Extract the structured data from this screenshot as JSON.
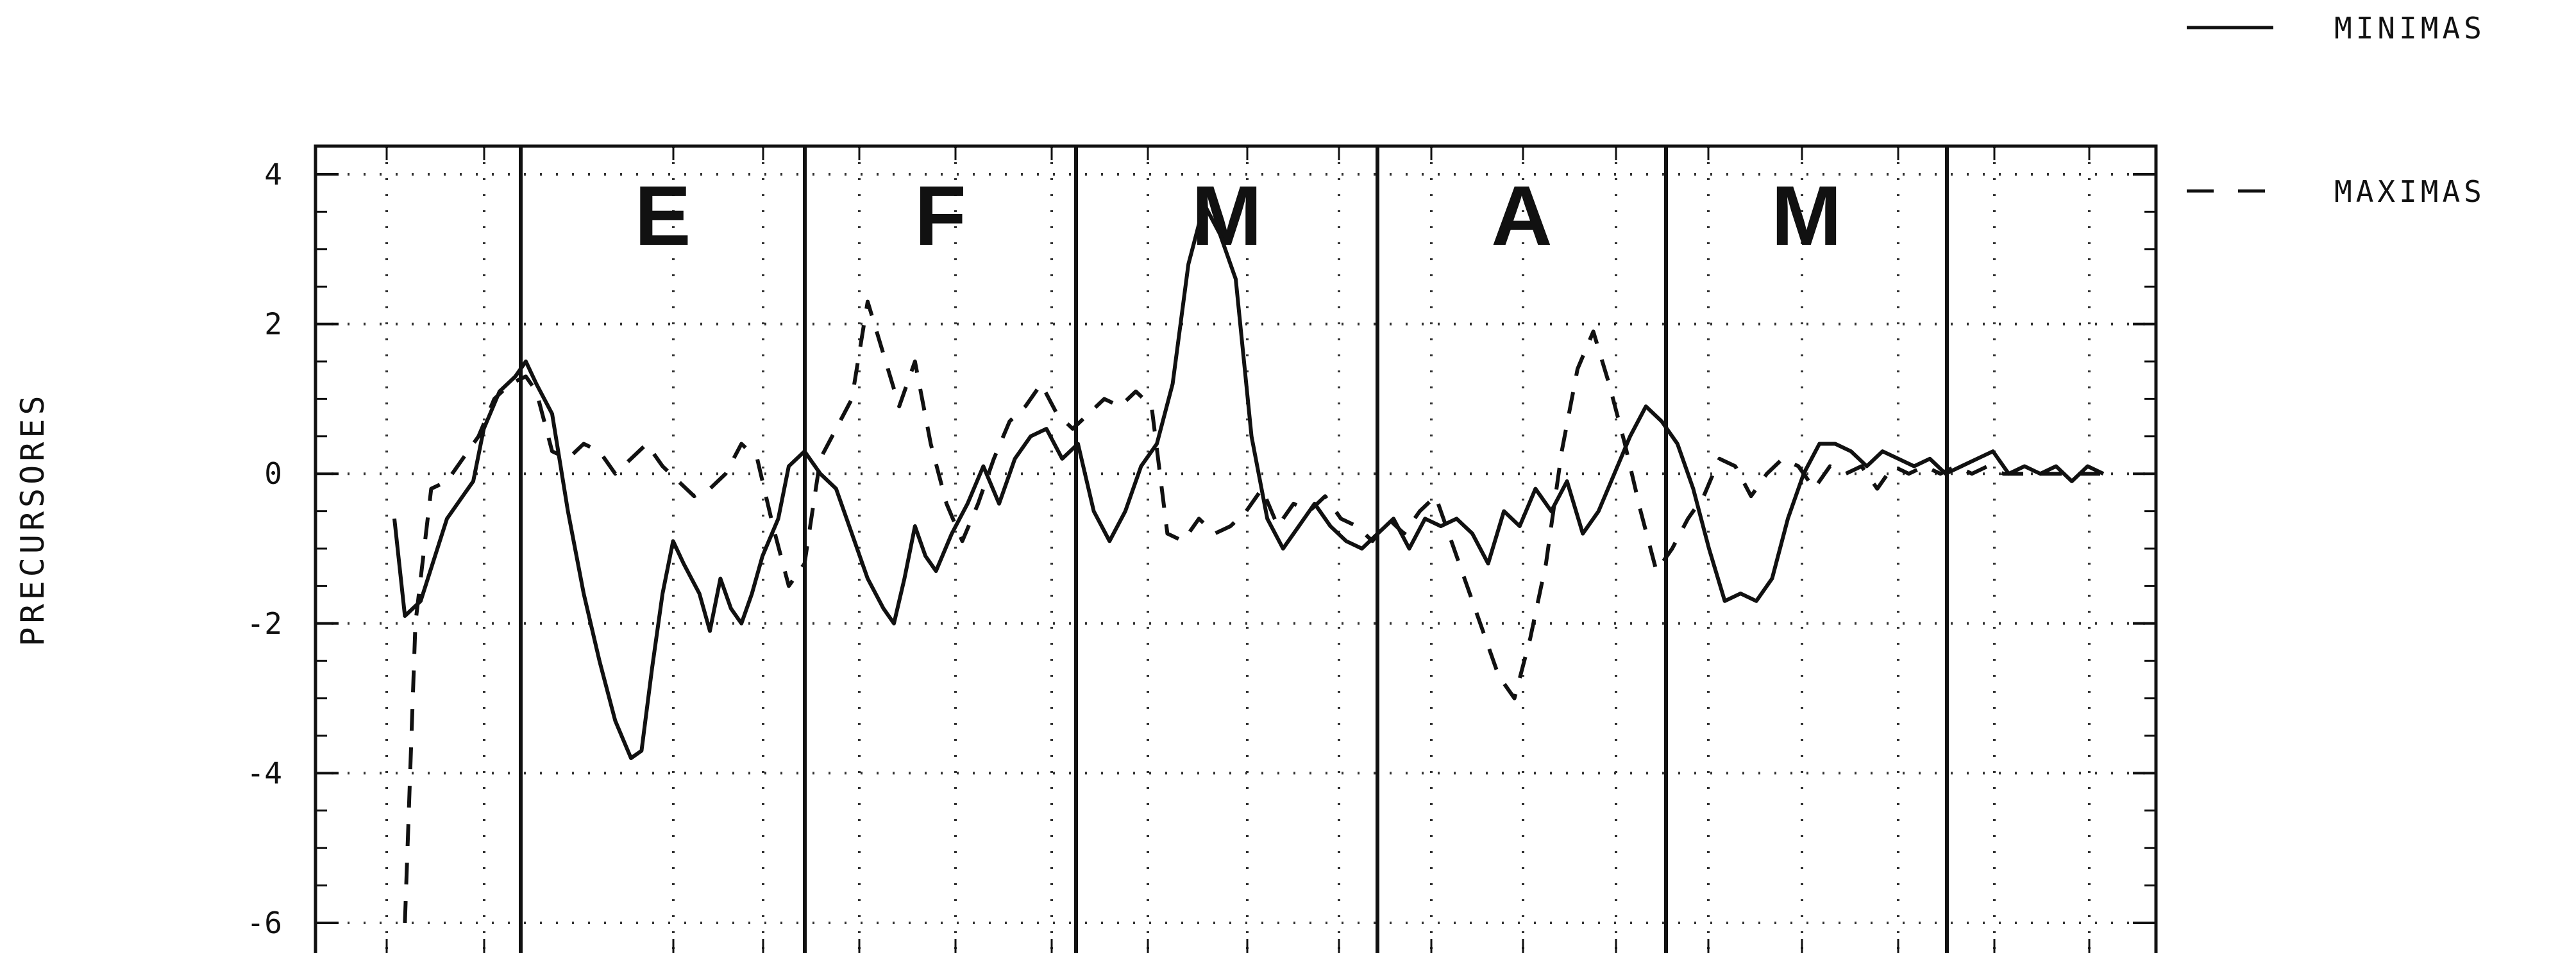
{
  "chart_data": {
    "type": "line",
    "title": "",
    "xlabel": "",
    "ylabel": "PRECURSORES",
    "ylim": [
      -6,
      4.4
    ],
    "yticks": [
      4,
      2,
      0,
      -2,
      -4,
      -6
    ],
    "ytick_labels": [
      "4",
      "2",
      "0",
      "-2",
      "-4",
      "-6"
    ],
    "grid": true,
    "legend_position": "top-right",
    "month_labels": [
      "E",
      "F",
      "M",
      "A",
      "M"
    ],
    "series": [
      {
        "name": "MINIMAS",
        "style": "solid",
        "points": [
          [
            -0.5,
            -0.6
          ],
          [
            -0.3,
            -1.9
          ],
          [
            0,
            -1.7
          ],
          [
            0.5,
            -0.6
          ],
          [
            0.8,
            -0.3
          ],
          [
            1.0,
            -0.1
          ],
          [
            1.2,
            0.6
          ],
          [
            1.5,
            1.1
          ],
          [
            1.8,
            1.3
          ],
          [
            2.0,
            1.5
          ],
          [
            2.2,
            1.2
          ],
          [
            2.5,
            0.8
          ],
          [
            2.8,
            -0.5
          ],
          [
            3.1,
            -1.6
          ],
          [
            3.4,
            -2.5
          ],
          [
            3.7,
            -3.3
          ],
          [
            4.0,
            -3.8
          ],
          [
            4.2,
            -3.7
          ],
          [
            4.4,
            -2.6
          ],
          [
            4.6,
            -1.6
          ],
          [
            4.8,
            -0.9
          ],
          [
            5.0,
            -1.2
          ],
          [
            5.3,
            -1.6
          ],
          [
            5.5,
            -2.1
          ],
          [
            5.7,
            -1.4
          ],
          [
            5.9,
            -1.8
          ],
          [
            6.1,
            -2.0
          ],
          [
            6.3,
            -1.6
          ],
          [
            6.5,
            -1.1
          ],
          [
            6.8,
            -0.6
          ],
          [
            7.0,
            0.1
          ],
          [
            7.3,
            0.3
          ],
          [
            7.6,
            0.0
          ],
          [
            7.9,
            -0.2
          ],
          [
            8.2,
            -0.8
          ],
          [
            8.5,
            -1.4
          ],
          [
            8.8,
            -1.8
          ],
          [
            9.0,
            -2.0
          ],
          [
            9.2,
            -1.4
          ],
          [
            9.4,
            -0.7
          ],
          [
            9.6,
            -1.1
          ],
          [
            9.8,
            -1.3
          ],
          [
            10.1,
            -0.8
          ],
          [
            10.4,
            -0.4
          ],
          [
            10.7,
            0.1
          ],
          [
            11.0,
            -0.4
          ],
          [
            11.3,
            0.2
          ],
          [
            11.6,
            0.5
          ],
          [
            11.9,
            0.6
          ],
          [
            12.2,
            0.2
          ],
          [
            12.5,
            0.4
          ],
          [
            12.8,
            -0.5
          ],
          [
            13.1,
            -0.9
          ],
          [
            13.4,
            -0.5
          ],
          [
            13.7,
            0.1
          ],
          [
            14.0,
            0.4
          ],
          [
            14.3,
            1.2
          ],
          [
            14.6,
            2.8
          ],
          [
            14.9,
            3.6
          ],
          [
            15.2,
            3.2
          ],
          [
            15.5,
            2.6
          ],
          [
            15.8,
            0.5
          ],
          [
            16.1,
            -0.6
          ],
          [
            16.4,
            -1.0
          ],
          [
            16.7,
            -0.7
          ],
          [
            17.0,
            -0.4
          ],
          [
            17.3,
            -0.7
          ],
          [
            17.6,
            -0.9
          ],
          [
            17.9,
            -1.0
          ],
          [
            18.2,
            -0.8
          ],
          [
            18.5,
            -0.6
          ],
          [
            18.8,
            -1.0
          ],
          [
            19.1,
            -0.6
          ],
          [
            19.4,
            -0.7
          ],
          [
            19.7,
            -0.6
          ],
          [
            20.0,
            -0.8
          ],
          [
            20.3,
            -1.2
          ],
          [
            20.6,
            -0.5
          ],
          [
            20.9,
            -0.7
          ],
          [
            21.2,
            -0.2
          ],
          [
            21.5,
            -0.5
          ],
          [
            21.8,
            -0.1
          ],
          [
            22.1,
            -0.8
          ],
          [
            22.4,
            -0.5
          ],
          [
            22.7,
            0.0
          ],
          [
            23.0,
            0.5
          ],
          [
            23.3,
            0.9
          ],
          [
            23.6,
            0.7
          ],
          [
            23.9,
            0.4
          ],
          [
            24.2,
            -0.2
          ],
          [
            24.5,
            -1.0
          ],
          [
            24.8,
            -1.7
          ],
          [
            25.1,
            -1.6
          ],
          [
            25.4,
            -1.7
          ],
          [
            25.7,
            -1.4
          ],
          [
            26.0,
            -0.6
          ],
          [
            26.3,
            0.0
          ],
          [
            26.6,
            0.4
          ],
          [
            26.9,
            0.4
          ],
          [
            27.2,
            0.3
          ],
          [
            27.5,
            0.1
          ],
          [
            27.8,
            0.3
          ],
          [
            28.1,
            0.2
          ],
          [
            28.4,
            0.1
          ],
          [
            28.7,
            0.2
          ],
          [
            29.0,
            0.0
          ],
          [
            29.3,
            0.1
          ],
          [
            29.6,
            0.2
          ],
          [
            29.9,
            0.3
          ],
          [
            30.2,
            0.0
          ],
          [
            30.5,
            0.1
          ],
          [
            30.8,
            0.0
          ],
          [
            31.1,
            0.1
          ],
          [
            31.4,
            -0.1
          ],
          [
            31.7,
            0.1
          ],
          [
            32.0,
            0.0
          ]
        ]
      },
      {
        "name": "MAXIMAS",
        "style": "dashed",
        "points": [
          [
            -0.3,
            -6.0
          ],
          [
            -0.1,
            -2.0
          ],
          [
            0.2,
            -0.2
          ],
          [
            0.5,
            -0.1
          ],
          [
            0.8,
            0.2
          ],
          [
            1.1,
            0.5
          ],
          [
            1.4,
            1.0
          ],
          [
            1.7,
            1.2
          ],
          [
            2.0,
            1.3
          ],
          [
            2.2,
            1.1
          ],
          [
            2.5,
            0.3
          ],
          [
            2.8,
            0.2
          ],
          [
            3.1,
            0.4
          ],
          [
            3.4,
            0.3
          ],
          [
            3.7,
            0.0
          ],
          [
            4.0,
            0.2
          ],
          [
            4.3,
            0.4
          ],
          [
            4.6,
            0.1
          ],
          [
            4.9,
            -0.1
          ],
          [
            5.2,
            -0.3
          ],
          [
            5.5,
            -0.2
          ],
          [
            5.8,
            0.0
          ],
          [
            6.1,
            0.4
          ],
          [
            6.4,
            0.2
          ],
          [
            6.7,
            -0.7
          ],
          [
            7.0,
            -1.5
          ],
          [
            7.3,
            -1.2
          ],
          [
            7.6,
            0.2
          ],
          [
            7.9,
            0.6
          ],
          [
            8.2,
            1.0
          ],
          [
            8.5,
            2.3
          ],
          [
            8.8,
            1.6
          ],
          [
            9.1,
            0.9
          ],
          [
            9.4,
            1.5
          ],
          [
            9.7,
            0.4
          ],
          [
            10.0,
            -0.4
          ],
          [
            10.3,
            -0.9
          ],
          [
            10.6,
            -0.4
          ],
          [
            10.9,
            0.2
          ],
          [
            11.2,
            0.7
          ],
          [
            11.5,
            0.9
          ],
          [
            11.8,
            1.2
          ],
          [
            12.1,
            0.8
          ],
          [
            12.4,
            0.6
          ],
          [
            12.7,
            0.8
          ],
          [
            13.0,
            1.0
          ],
          [
            13.3,
            0.9
          ],
          [
            13.6,
            1.1
          ],
          [
            13.9,
            0.9
          ],
          [
            14.2,
            -0.8
          ],
          [
            14.5,
            -0.9
          ],
          [
            14.8,
            -0.6
          ],
          [
            15.1,
            -0.8
          ],
          [
            15.4,
            -0.7
          ],
          [
            15.7,
            -0.5
          ],
          [
            16.0,
            -0.2
          ],
          [
            16.3,
            -0.7
          ],
          [
            16.6,
            -0.4
          ],
          [
            16.9,
            -0.5
          ],
          [
            17.2,
            -0.3
          ],
          [
            17.5,
            -0.6
          ],
          [
            17.8,
            -0.7
          ],
          [
            18.1,
            -0.9
          ],
          [
            18.4,
            -0.6
          ],
          [
            18.7,
            -0.8
          ],
          [
            19.0,
            -0.5
          ],
          [
            19.3,
            -0.3
          ],
          [
            19.6,
            -0.9
          ],
          [
            19.9,
            -1.5
          ],
          [
            20.2,
            -2.1
          ],
          [
            20.5,
            -2.7
          ],
          [
            20.8,
            -3.0
          ],
          [
            21.1,
            -2.2
          ],
          [
            21.4,
            -1.2
          ],
          [
            21.7,
            0.3
          ],
          [
            22.0,
            1.4
          ],
          [
            22.3,
            1.9
          ],
          [
            22.6,
            1.2
          ],
          [
            22.9,
            0.4
          ],
          [
            23.2,
            -0.5
          ],
          [
            23.5,
            -1.3
          ],
          [
            23.8,
            -1.0
          ],
          [
            24.1,
            -0.6
          ],
          [
            24.4,
            -0.3
          ],
          [
            24.7,
            0.2
          ],
          [
            25.0,
            0.1
          ],
          [
            25.3,
            -0.3
          ],
          [
            25.6,
            0.0
          ],
          [
            25.9,
            0.2
          ],
          [
            26.2,
            0.1
          ],
          [
            26.5,
            -0.2
          ],
          [
            26.8,
            0.1
          ],
          [
            27.1,
            0.0
          ],
          [
            27.4,
            0.1
          ],
          [
            27.7,
            -0.2
          ],
          [
            28.0,
            0.1
          ],
          [
            28.3,
            0.0
          ],
          [
            28.6,
            0.1
          ],
          [
            28.9,
            0.0
          ],
          [
            29.2,
            0.1
          ],
          [
            29.5,
            0.0
          ],
          [
            29.8,
            0.1
          ],
          [
            30.1,
            0.0
          ],
          [
            30.4,
            0.0
          ],
          [
            30.7,
            0.0
          ],
          [
            31.0,
            0.0
          ],
          [
            31.3,
            0.0
          ],
          [
            31.6,
            0.0
          ],
          [
            32.0,
            0.0
          ]
        ]
      }
    ]
  },
  "legend": {
    "items": [
      {
        "label": "MINIMAS",
        "style": "solid"
      },
      {
        "label": "MAXIMAS",
        "style": "dashed"
      }
    ]
  },
  "colors": {
    "line": "#111111",
    "grid": "#333333",
    "background": "#ffffff"
  }
}
